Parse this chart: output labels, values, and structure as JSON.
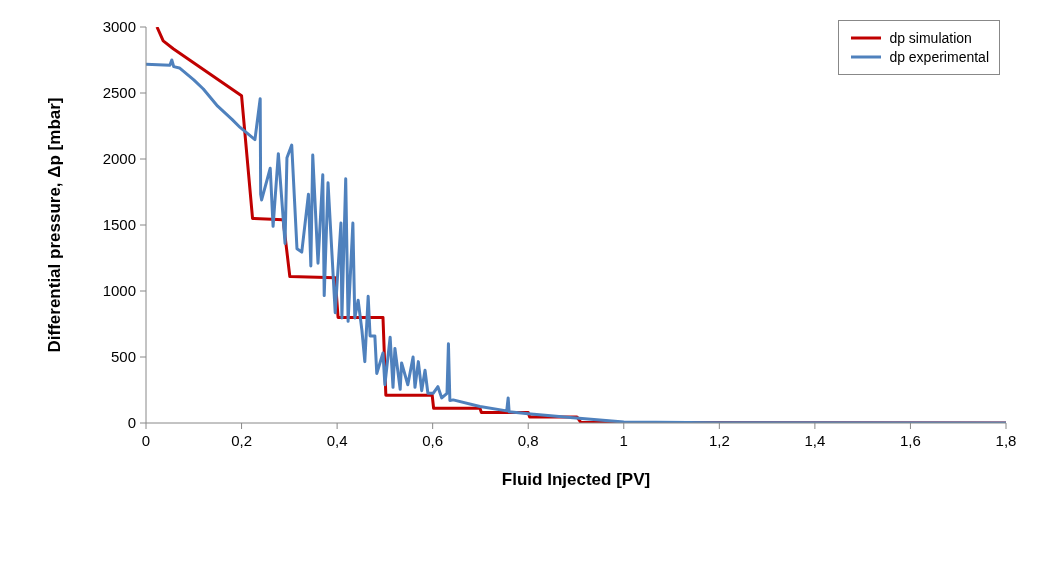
{
  "chart_data": {
    "type": "line",
    "xlabel": "Fluid Injected [PV]",
    "ylabel": "Differential pressure, Δp [mbar]",
    "xlim": [
      0,
      1.8
    ],
    "xticks": [
      0,
      {
        "value": 0.2,
        "label": "0,2"
      },
      {
        "value": 0.4,
        "label": "0,4"
      },
      {
        "value": 0.6,
        "label": "0,6"
      },
      {
        "value": 0.8,
        "label": "0,8"
      },
      1,
      {
        "value": 1.2,
        "label": "1,2"
      },
      {
        "value": 1.4,
        "label": "1,4"
      },
      {
        "value": 1.6,
        "label": "1,6"
      },
      {
        "value": 1.8,
        "label": "1,8"
      }
    ],
    "ylim": [
      0,
      3000
    ],
    "yticks": [
      0,
      500,
      1000,
      1500,
      2000,
      2500,
      3000
    ],
    "grid": false,
    "legend": "top right",
    "marker": "none",
    "line_style": "solid",
    "series": [
      {
        "name": "dp simulation",
        "color": "#c00000",
        "x": [
          0.023,
          0.036,
          0.057,
          0.2,
          0.223,
          0.287,
          0.301,
          0.396,
          0.402,
          0.496,
          0.502,
          0.599,
          0.602,
          0.699,
          0.702,
          0.8,
          0.803,
          0.902,
          0.91,
          1,
          1.8
        ],
        "values": [
          3000,
          2895,
          2835,
          2480,
          1550,
          1540,
          1110,
          1100,
          800,
          800,
          210,
          210,
          112,
          112,
          79,
          79,
          46,
          46,
          5,
          3,
          0
        ]
      },
      {
        "name": "dp experimental",
        "color": "#4f81bd",
        "x": [
          0,
          0.05,
          0.054,
          0.058,
          0.07,
          0.1,
          0.12,
          0.15,
          0.18,
          0.197,
          0.228,
          0.239,
          0.24,
          0.242,
          0.26,
          0.266,
          0.277,
          0.291,
          0.295,
          0.305,
          0.316,
          0.326,
          0.34,
          0.345,
          0.349,
          0.36,
          0.37,
          0.373,
          0.381,
          0.392,
          0.396,
          0.408,
          0.41,
          0.418,
          0.423,
          0.433,
          0.437,
          0.444,
          0.452,
          0.458,
          0.465,
          0.469,
          0.479,
          0.483,
          0.496,
          0.5,
          0.511,
          0.517,
          0.521,
          0.532,
          0.535,
          0.548,
          0.559,
          0.563,
          0.57,
          0.577,
          0.584,
          0.59,
          0.601,
          0.611,
          0.619,
          0.63,
          0.633,
          0.636,
          0.643,
          0.699,
          0.755,
          0.758,
          0.76,
          0.8,
          0.894,
          1,
          1.2,
          1.8
        ],
        "values": [
          2718,
          2710,
          2750,
          2700,
          2690,
          2600,
          2530,
          2400,
          2300,
          2239,
          2147,
          2456,
          1733,
          1690,
          1930,
          1490,
          2040,
          1360,
          2010,
          2105,
          1320,
          1295,
          1733,
          1190,
          2030,
          1210,
          1880,
          965,
          1820,
          1100,
          835,
          1515,
          795,
          1850,
          770,
          1515,
          795,
          930,
          700,
          465,
          960,
          660,
          660,
          375,
          530,
          290,
          650,
          270,
          565,
          255,
          455,
          290,
          500,
          270,
          465,
          245,
          400,
          225,
          225,
          275,
          190,
          225,
          600,
          170,
          175,
          125,
          92,
          190,
          85,
          70,
          40,
          7,
          2,
          0
        ]
      }
    ]
  }
}
